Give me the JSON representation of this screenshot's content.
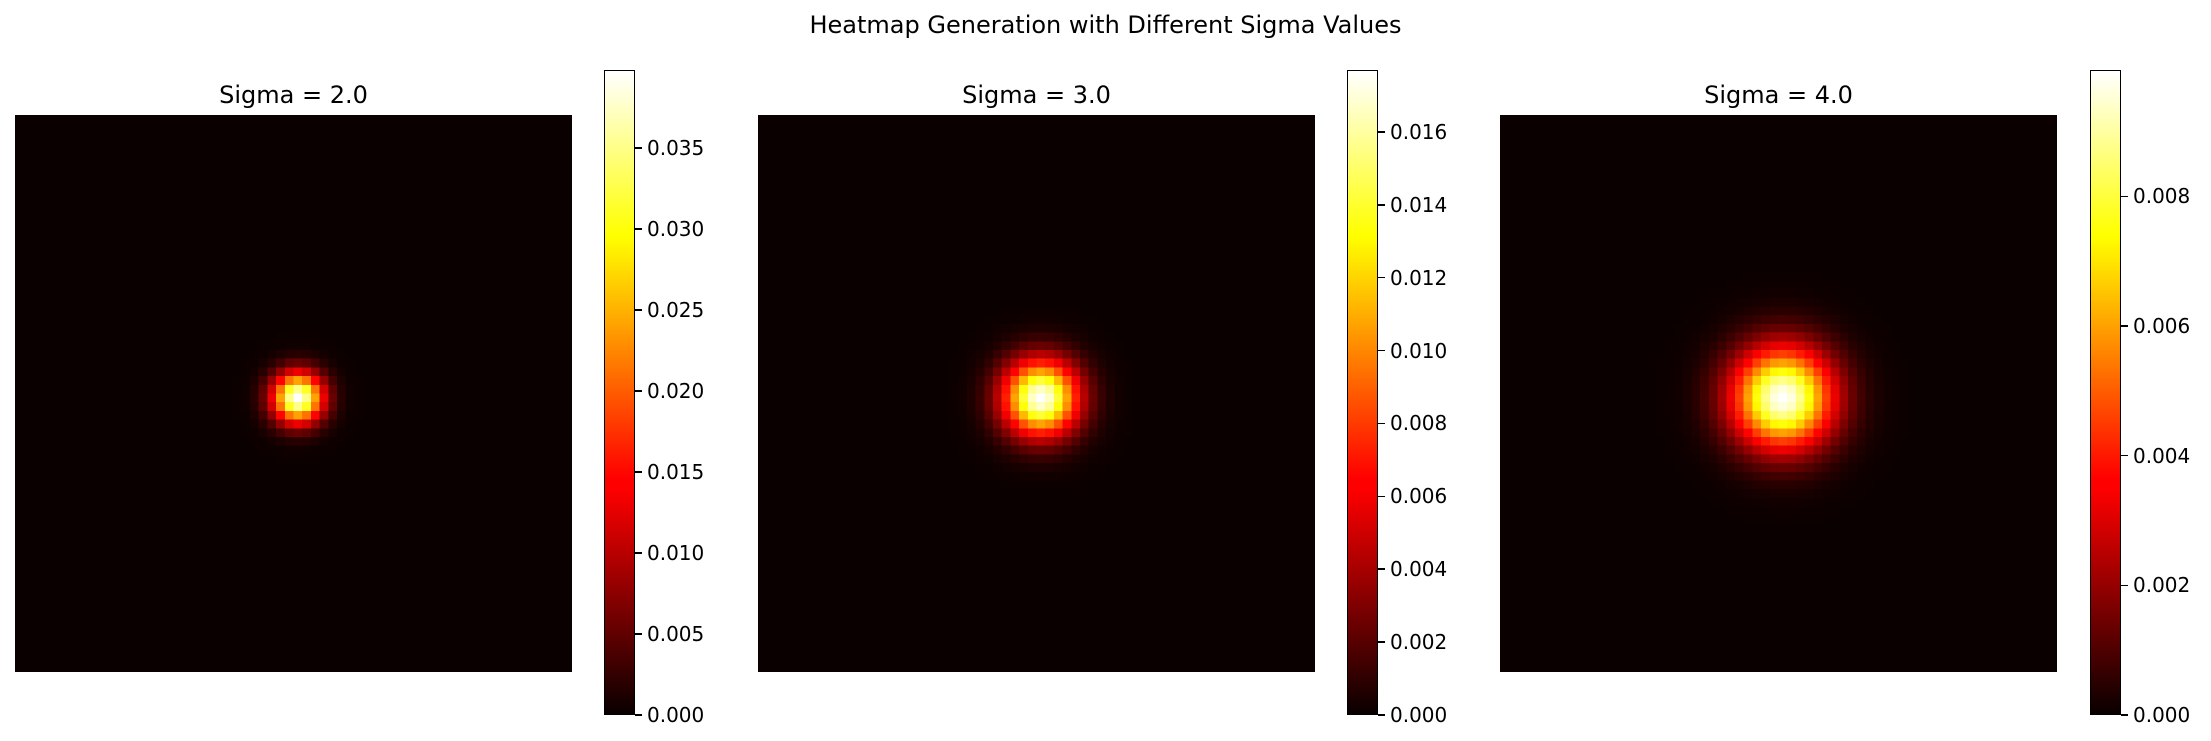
{
  "chart_data": [
    {
      "type": "heatmap",
      "title": "Sigma = 2.0",
      "sigma": 2.0,
      "grid_size": 64,
      "center": [
        32,
        32
      ],
      "peak": 0.0398,
      "colormap": "hot",
      "axes_visible": false,
      "colorbar": {
        "vmin": 0.0,
        "vmax": 0.0398,
        "ticks": [
          0.0,
          0.005,
          0.01,
          0.015,
          0.02,
          0.025,
          0.03,
          0.035
        ],
        "tick_labels": [
          "0.000",
          "0.005",
          "0.010",
          "0.015",
          "0.020",
          "0.025",
          "0.030",
          "0.035"
        ]
      }
    },
    {
      "type": "heatmap",
      "title": "Sigma = 3.0",
      "sigma": 3.0,
      "grid_size": 64,
      "center": [
        32,
        32
      ],
      "peak": 0.0177,
      "colormap": "hot",
      "axes_visible": false,
      "colorbar": {
        "vmin": 0.0,
        "vmax": 0.0177,
        "ticks": [
          0.0,
          0.002,
          0.004,
          0.006,
          0.008,
          0.01,
          0.012,
          0.014,
          0.016
        ],
        "tick_labels": [
          "0.000",
          "0.002",
          "0.004",
          "0.006",
          "0.008",
          "0.010",
          "0.012",
          "0.014",
          "0.016"
        ]
      }
    },
    {
      "type": "heatmap",
      "title": "Sigma = 4.0",
      "sigma": 4.0,
      "grid_size": 64,
      "center": [
        32,
        32
      ],
      "peak": 0.00995,
      "colormap": "hot",
      "axes_visible": false,
      "colorbar": {
        "vmin": 0.0,
        "vmax": 0.00995,
        "ticks": [
          0.0,
          0.002,
          0.004,
          0.006,
          0.008
        ],
        "tick_labels": [
          "0.000",
          "0.002",
          "0.004",
          "0.006",
          "0.008"
        ]
      }
    }
  ],
  "figure": {
    "suptitle": "Heatmap Generation with Different Sigma Values"
  }
}
